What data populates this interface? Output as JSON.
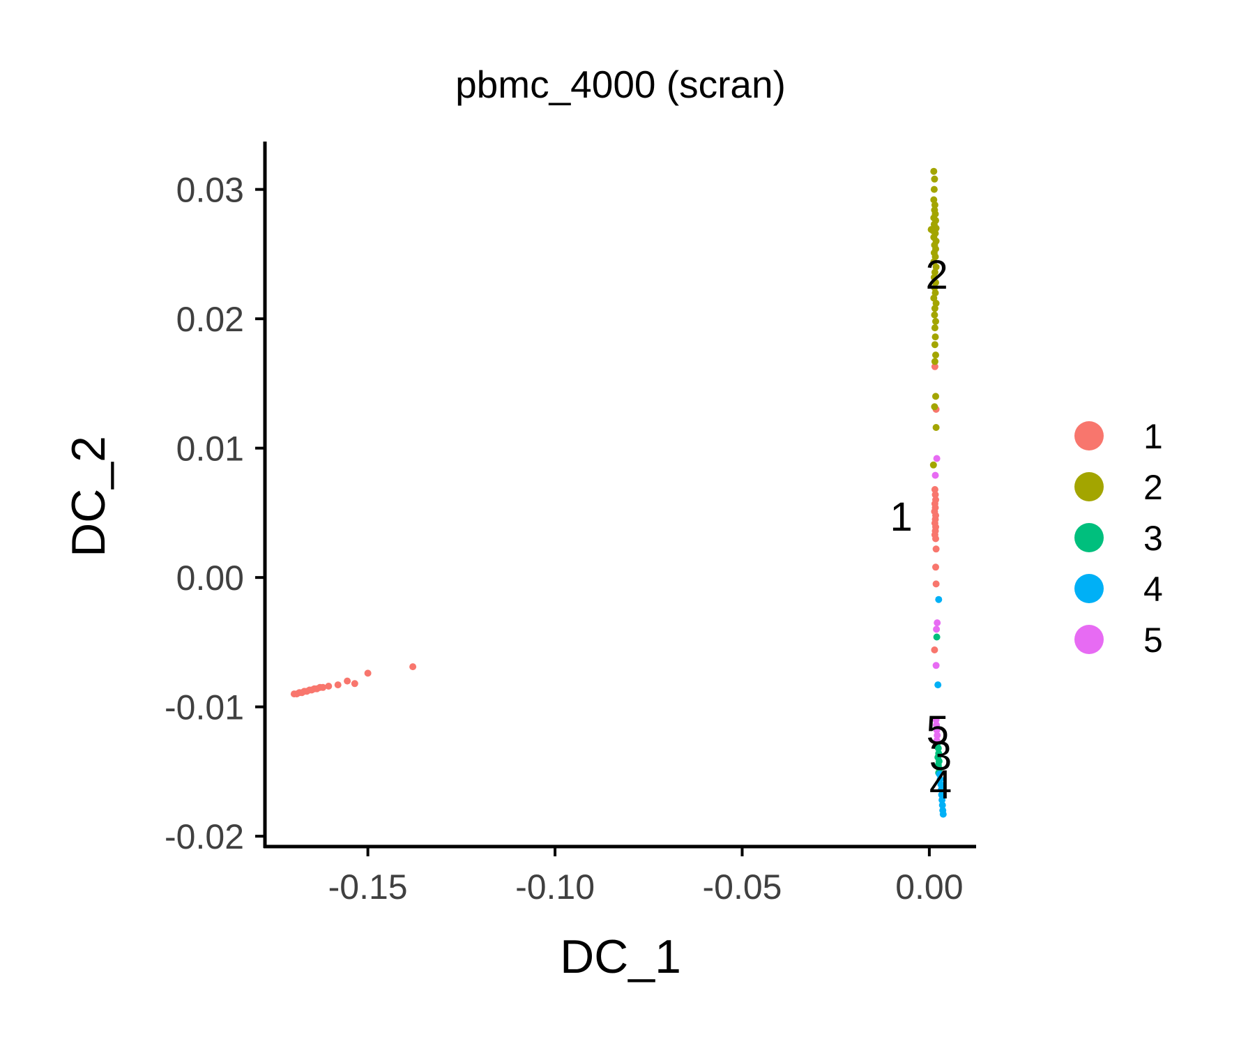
{
  "chart_data": {
    "type": "scatter",
    "title": "pbmc_4000 (scran)",
    "xlabel": "DC_1",
    "ylabel": "DC_2",
    "xlim": [
      -0.1775,
      0.0125
    ],
    "ylim": [
      -0.0208,
      0.0337
    ],
    "xticks": [
      -0.15,
      -0.1,
      -0.05,
      0.0
    ],
    "xtick_labels": [
      "-0.15",
      "-0.10",
      "-0.05",
      "0.00"
    ],
    "yticks": [
      -0.02,
      -0.01,
      0.0,
      0.01,
      0.02,
      0.03
    ],
    "ytick_labels": [
      "-0.02",
      "-0.01",
      "0.00",
      "0.01",
      "0.02",
      "0.03"
    ],
    "grid": false,
    "legend": {
      "position": "right",
      "entries": [
        "1",
        "2",
        "3",
        "4",
        "5"
      ]
    },
    "series": [
      {
        "name": "1",
        "color": "#F8766D",
        "points": [
          [
            -0.1697,
            -0.009
          ],
          [
            -0.169,
            -0.009
          ],
          [
            -0.1683,
            -0.0089
          ],
          [
            -0.1676,
            -0.0089
          ],
          [
            -0.167,
            -0.0088
          ],
          [
            -0.1663,
            -0.0088
          ],
          [
            -0.1656,
            -0.0087
          ],
          [
            -0.165,
            -0.0087
          ],
          [
            -0.1643,
            -0.0086
          ],
          [
            -0.1636,
            -0.0086
          ],
          [
            -0.1628,
            -0.0085
          ],
          [
            -0.162,
            -0.0085
          ],
          [
            -0.1605,
            -0.0084
          ],
          [
            -0.158,
            -0.0083
          ],
          [
            -0.1555,
            -0.008
          ],
          [
            -0.1535,
            -0.0082
          ],
          [
            -0.15,
            -0.0074
          ],
          [
            -0.138,
            -0.0069
          ],
          [
            0.0015,
            0.0163
          ],
          [
            0.0018,
            0.013
          ],
          [
            0.0015,
            0.0068
          ],
          [
            0.0016,
            0.0064
          ],
          [
            0.0017,
            0.006
          ],
          [
            0.0015,
            0.0057
          ],
          [
            0.0016,
            0.0054
          ],
          [
            0.0014,
            0.0051
          ],
          [
            0.0017,
            0.0048
          ],
          [
            0.0016,
            0.0045
          ],
          [
            0.0015,
            0.0042
          ],
          [
            0.0017,
            0.0039
          ],
          [
            0.0016,
            0.0036
          ],
          [
            0.0015,
            0.0033
          ],
          [
            0.0017,
            0.003
          ],
          [
            0.0018,
            0.0022
          ],
          [
            0.0017,
            0.0008
          ],
          [
            0.0018,
            -0.0005
          ],
          [
            0.0014,
            -0.0056
          ]
        ]
      },
      {
        "name": "2",
        "color": "#A3A500",
        "points": [
          [
            0.0012,
            0.0314
          ],
          [
            0.0014,
            0.0308
          ],
          [
            0.0013,
            0.03
          ],
          [
            0.0012,
            0.0292
          ],
          [
            0.0015,
            0.0288
          ],
          [
            0.0014,
            0.0284
          ],
          [
            0.0016,
            0.0281
          ],
          [
            0.0012,
            0.0278
          ],
          [
            0.0017,
            0.0276
          ],
          [
            0.0013,
            0.0273
          ],
          [
            0.0018,
            0.027
          ],
          [
            0.001,
            0.0268
          ],
          [
            0.0005,
            0.0269
          ],
          [
            0.0016,
            0.0266
          ],
          [
            0.0012,
            0.0263
          ],
          [
            0.0018,
            0.026
          ],
          [
            0.0014,
            0.0257
          ],
          [
            0.0017,
            0.0254
          ],
          [
            0.0013,
            0.0251
          ],
          [
            0.0016,
            0.0248
          ],
          [
            0.0012,
            0.0244
          ],
          [
            0.0018,
            0.024
          ],
          [
            0.0015,
            0.0236
          ],
          [
            0.0013,
            0.0232
          ],
          [
            0.0017,
            0.0228
          ],
          [
            0.0014,
            0.0224
          ],
          [
            0.0016,
            0.022
          ],
          [
            0.0012,
            0.0216
          ],
          [
            0.0018,
            0.0212
          ],
          [
            0.0015,
            0.0208
          ],
          [
            0.0014,
            0.0203
          ],
          [
            0.0017,
            0.0198
          ],
          [
            0.0015,
            0.0193
          ],
          [
            0.0016,
            0.0186
          ],
          [
            0.0015,
            0.018
          ],
          [
            0.0017,
            0.0172
          ],
          [
            0.0015,
            0.0167
          ],
          [
            0.0017,
            0.014
          ],
          [
            0.0014,
            0.0132
          ],
          [
            0.0018,
            0.0116
          ],
          [
            0.0011,
            0.0087
          ]
        ]
      },
      {
        "name": "3",
        "color": "#00BF7D",
        "points": [
          [
            0.002,
            -0.0046
          ],
          [
            0.0022,
            -0.0128
          ],
          [
            0.0024,
            -0.0132
          ],
          [
            0.0025,
            -0.0136
          ],
          [
            0.0023,
            -0.0139
          ],
          [
            0.0026,
            -0.0142
          ],
          [
            0.0024,
            -0.0145
          ],
          [
            0.0027,
            -0.0148
          ],
          [
            0.0025,
            -0.0151
          ]
        ]
      },
      {
        "name": "4",
        "color": "#00B0F6",
        "points": [
          [
            0.0025,
            -0.0017
          ],
          [
            0.0023,
            -0.0083
          ],
          [
            0.0027,
            -0.0152
          ],
          [
            0.0029,
            -0.0156
          ],
          [
            0.0031,
            -0.016
          ],
          [
            0.0032,
            -0.0164
          ],
          [
            0.0033,
            -0.0168
          ],
          [
            0.0034,
            -0.0172
          ],
          [
            0.0035,
            -0.0176
          ],
          [
            0.0036,
            -0.018
          ],
          [
            0.0037,
            -0.0183
          ]
        ]
      },
      {
        "name": "5",
        "color": "#E76BF3",
        "points": [
          [
            0.002,
            0.0092
          ],
          [
            0.0016,
            0.0079
          ],
          [
            0.0021,
            -0.0035
          ],
          [
            0.0019,
            -0.004
          ],
          [
            0.0018,
            -0.0068
          ],
          [
            0.0018,
            -0.011
          ],
          [
            0.0019,
            -0.0114
          ],
          [
            0.002,
            -0.0118
          ],
          [
            0.0021,
            -0.0122
          ],
          [
            0.002,
            -0.0126
          ]
        ]
      }
    ],
    "cluster_labels": [
      {
        "label": "1",
        "x": -0.0075,
        "y": 0.0047
      },
      {
        "label": "2",
        "x": 0.002,
        "y": 0.0234
      },
      {
        "label": "3",
        "x": 0.003,
        "y": -0.0138
      },
      {
        "label": "4",
        "x": 0.003,
        "y": -0.016
      },
      {
        "label": "5",
        "x": 0.0022,
        "y": -0.0118
      }
    ]
  }
}
